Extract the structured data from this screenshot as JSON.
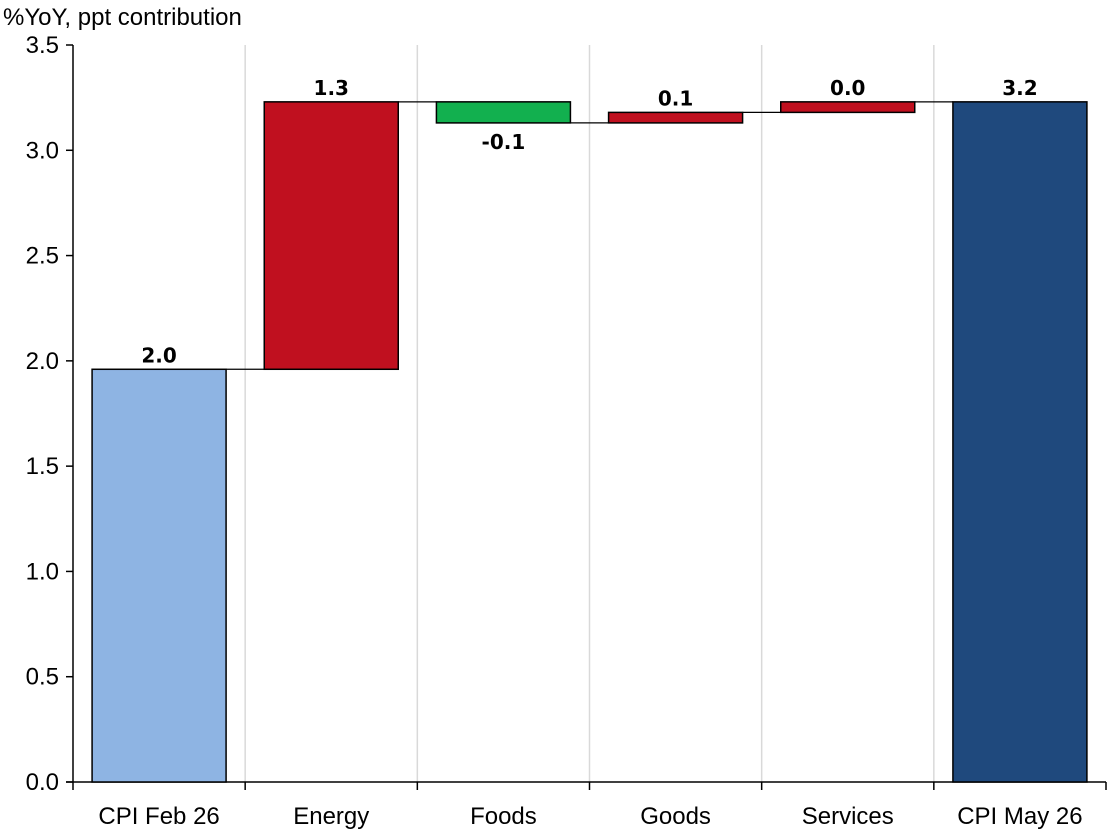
{
  "chart_data": {
    "type": "bar",
    "subtype": "waterfall",
    "unit_label": "%YoY, ppt contribution",
    "categories": [
      "CPI Feb 26",
      "Energy",
      "Foods",
      "Goods",
      "Services",
      "CPI May 26"
    ],
    "values": [
      1.96,
      1.27,
      -0.1,
      0.05,
      0.05,
      3.23
    ],
    "data_labels": [
      "2.0",
      "1.3",
      "-0.1",
      "0.1",
      "0.0",
      "3.2"
    ],
    "bar_kinds": [
      "total",
      "delta",
      "delta",
      "delta",
      "delta",
      "total"
    ],
    "ylim": [
      0.0,
      3.5
    ],
    "yticks": [
      "0.0",
      "0.5",
      "1.0",
      "1.5",
      "2.0",
      "2.5",
      "3.0",
      "3.5"
    ],
    "grid": "vertical separators between categories",
    "legend": "none",
    "colors": {
      "start_total": "#8EB4E3",
      "end_total": "#1F497D",
      "increase": "#C0101F",
      "decrease": "#12B04F",
      "gridline": "#D9D9D9",
      "outline": "#000000"
    }
  }
}
